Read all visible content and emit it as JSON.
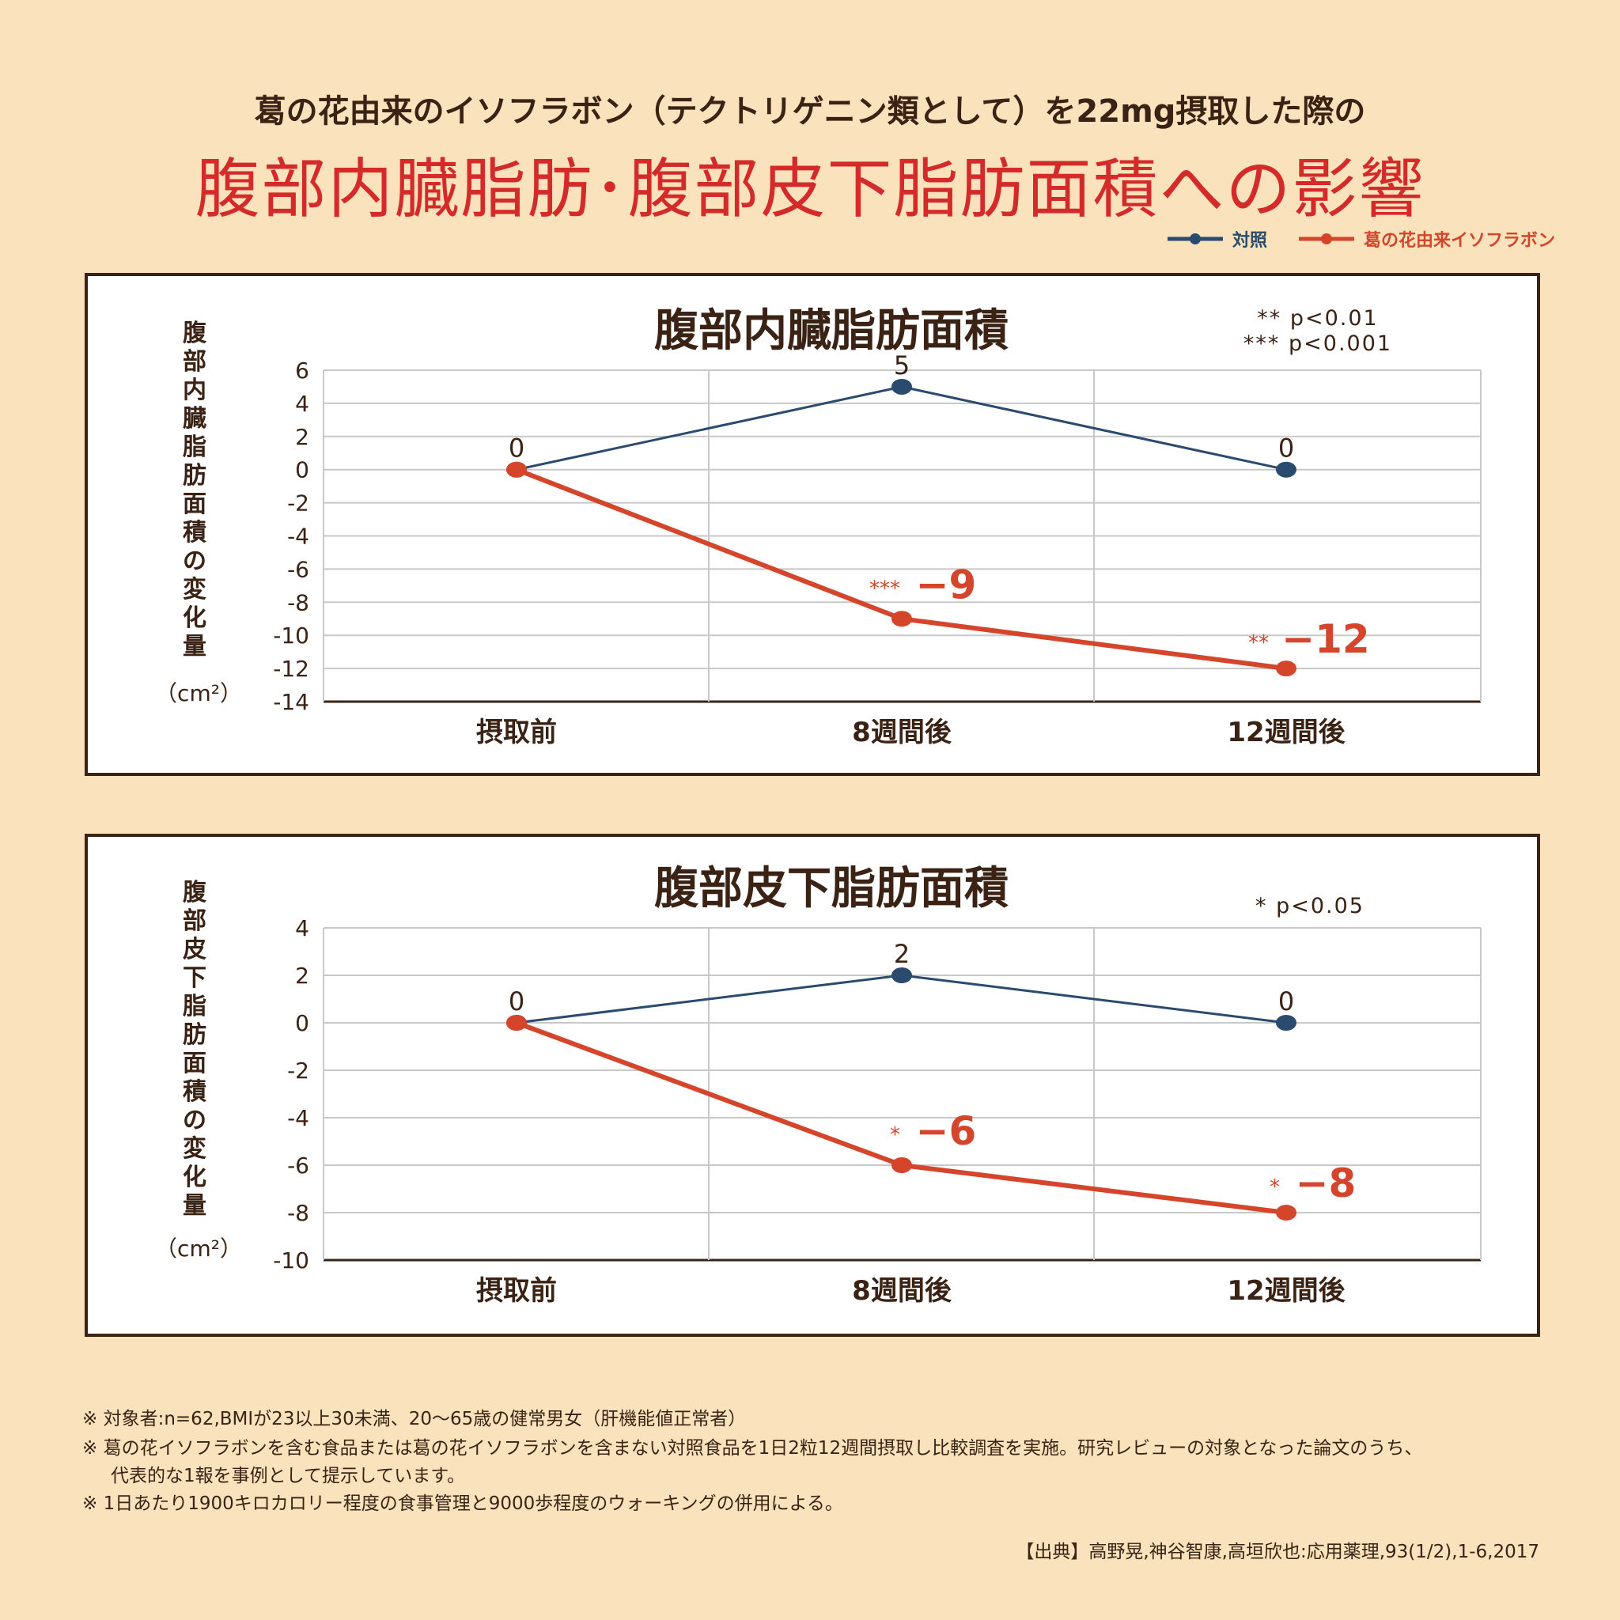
{
  "header": {
    "subtitle": "葛の花由来のイソフラボン（テクトリゲニン類として）を22mg摂取した際の",
    "title": "腹部内臓脂肪･腹部皮下脂肪面積への影響"
  },
  "legend": [
    {
      "label": "対照",
      "color": "#2a4a6e"
    },
    {
      "label": "葛の花由来イソフラボン",
      "color": "#d4452b"
    }
  ],
  "chart_data": [
    {
      "type": "line",
      "title": "腹部内臓脂肪面積",
      "ylabel": "腹部内臓脂肪面積の変化量",
      "yunit": "（cm²）",
      "categories": [
        "摂取前",
        "8週間後",
        "12週間後"
      ],
      "ylim": [
        -14,
        6
      ],
      "yticks": [
        6,
        4,
        2,
        0,
        -2,
        -4,
        -6,
        -8,
        -10,
        -12,
        -14
      ],
      "grid": true,
      "significance_notes": [
        "** p<0.01",
        "*** p<0.001"
      ],
      "series": [
        {
          "name": "対照",
          "color": "#2a4a6e",
          "values": [
            0,
            5,
            0
          ],
          "labels": [
            "0",
            "5",
            "0"
          ]
        },
        {
          "name": "葛の花由来イソフラボン",
          "color": "#d4452b",
          "values": [
            0,
            -9,
            -12
          ],
          "labels": [
            "",
            "−9",
            "−12"
          ],
          "stars": [
            "",
            "***",
            "**"
          ]
        }
      ]
    },
    {
      "type": "line",
      "title": "腹部皮下脂肪面積",
      "ylabel": "腹部皮下脂肪面積の変化量",
      "yunit": "（cm²）",
      "categories": [
        "摂取前",
        "8週間後",
        "12週間後"
      ],
      "ylim": [
        -10,
        4
      ],
      "yticks": [
        4,
        2,
        0,
        -2,
        -4,
        -6,
        -8,
        -10
      ],
      "grid": true,
      "significance_notes": [
        "* p<0.05"
      ],
      "series": [
        {
          "name": "対照",
          "color": "#2a4a6e",
          "values": [
            0,
            2,
            0
          ],
          "labels": [
            "0",
            "2",
            "0"
          ]
        },
        {
          "name": "葛の花由来イソフラボン",
          "color": "#d4452b",
          "values": [
            0,
            -6,
            -8
          ],
          "labels": [
            "",
            "−6",
            "−8"
          ],
          "stars": [
            "",
            "*",
            "*"
          ]
        }
      ]
    }
  ],
  "footnotes": [
    "※ 対象者:n=62,BMIが23以上30未満、20～65歳の健常男女（肝機能値正常者）",
    "※ 葛の花イソフラボンを含む食品または葛の花イソフラボンを含まない対照食品を1日2粒12週間摂取し比較調査を実施。研究レビューの対象となった論文のうち、",
    "代表的な1報を事例として提示しています。",
    "※ 1日あたり1900キロカロリー程度の食事管理と9000歩程度のウォーキングの併用による。"
  ],
  "source": "【出典】高野晃,神谷智康,高垣欣也:応用薬理,93(1/2),1-6,2017"
}
